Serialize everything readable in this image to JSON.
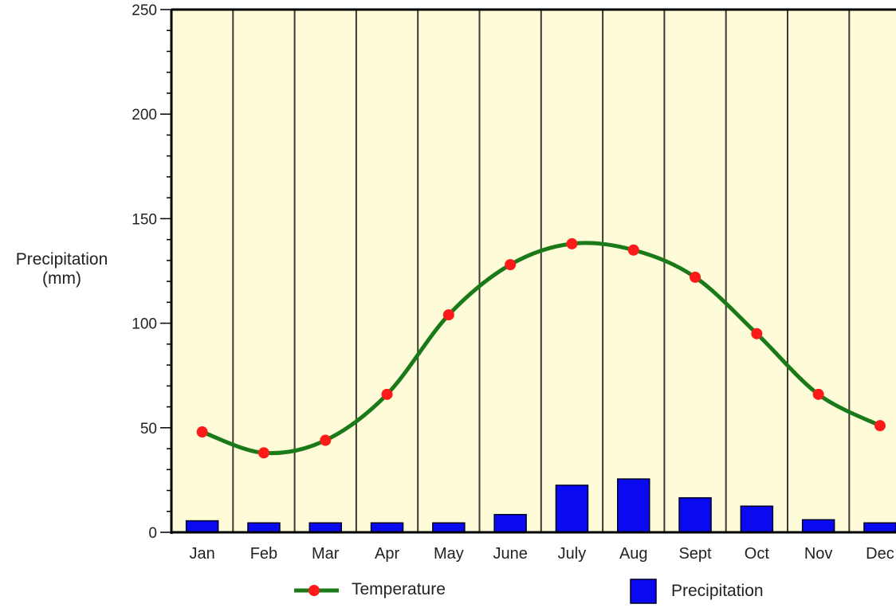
{
  "chart_data": {
    "type": "bar+line",
    "title": "",
    "xlabel": "",
    "ylabel": "Precipitation (mm)",
    "ylabel_lines": [
      "Precipitation",
      "(mm)"
    ],
    "ylim": [
      0,
      250
    ],
    "yticks": [
      0,
      50,
      100,
      150,
      200,
      250
    ],
    "minor_tick_step": 10,
    "grid": "vertical lines between months",
    "legend_position": "bottom",
    "categories": [
      "Jan",
      "Feb",
      "Mar",
      "Apr",
      "May",
      "June",
      "July",
      "Aug",
      "Sept",
      "Oct",
      "Nov",
      "Dec"
    ],
    "series": [
      {
        "name": "Temperature",
        "type": "line",
        "color": "#1a7a1a",
        "marker_color": "#ff1a1a",
        "values": [
          48,
          38,
          44,
          66,
          104,
          128,
          138,
          135,
          122,
          95,
          66,
          51
        ]
      },
      {
        "name": "Precipitation",
        "type": "bar",
        "color": "#0a0af0",
        "values": [
          5.5,
          4.5,
          4.5,
          4.5,
          4.5,
          8.5,
          22.5,
          25.5,
          16.5,
          12.5,
          6,
          4.5
        ]
      }
    ],
    "plot_background": "#fdfbd8"
  }
}
